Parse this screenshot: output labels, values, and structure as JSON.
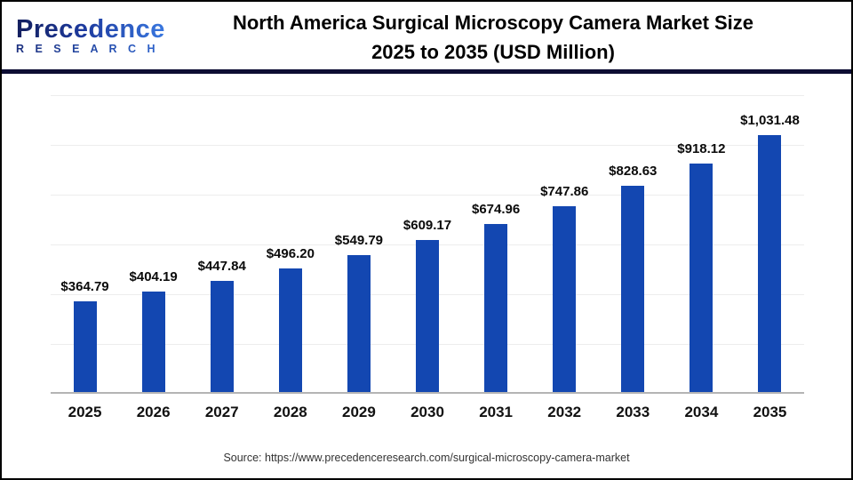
{
  "header": {
    "logo_name": "Precedence",
    "logo_sub": "R E S E A R C H",
    "title_line1": "North America Surgical Microscopy Camera Market Size",
    "title_line2": "2025 to 2035 (USD Million)",
    "divider_color": "#0d0d33"
  },
  "chart_data": {
    "type": "bar",
    "title": "North America Surgical Microscopy Camera Market Size 2025 to 2035 (USD Million)",
    "categories": [
      "2025",
      "2026",
      "2027",
      "2028",
      "2029",
      "2030",
      "2031",
      "2032",
      "2033",
      "2034",
      "2035"
    ],
    "values": [
      364.79,
      404.19,
      447.84,
      496.2,
      549.79,
      609.17,
      674.96,
      747.86,
      828.63,
      918.12,
      1031.48
    ],
    "value_labels": [
      "$364.79",
      "$404.19",
      "$447.84",
      "$496.20",
      "$549.79",
      "$609.17",
      "$674.96",
      "$747.86",
      "$828.63",
      "$918.12",
      "$1,031.48"
    ],
    "xlabel": "",
    "ylabel": "",
    "ylim": [
      0,
      1200
    ],
    "gridline_step": 200,
    "grid": "horizontal-only",
    "y_tick_labels_visible": false,
    "legend_position": "none",
    "bar_color": "#1347b1",
    "gridline_color": "#ededed",
    "axis_line_color": "#b4b4b4"
  },
  "footer": {
    "source": "Source: https://www.precedenceresearch.com/surgical-microscopy-camera-market"
  }
}
